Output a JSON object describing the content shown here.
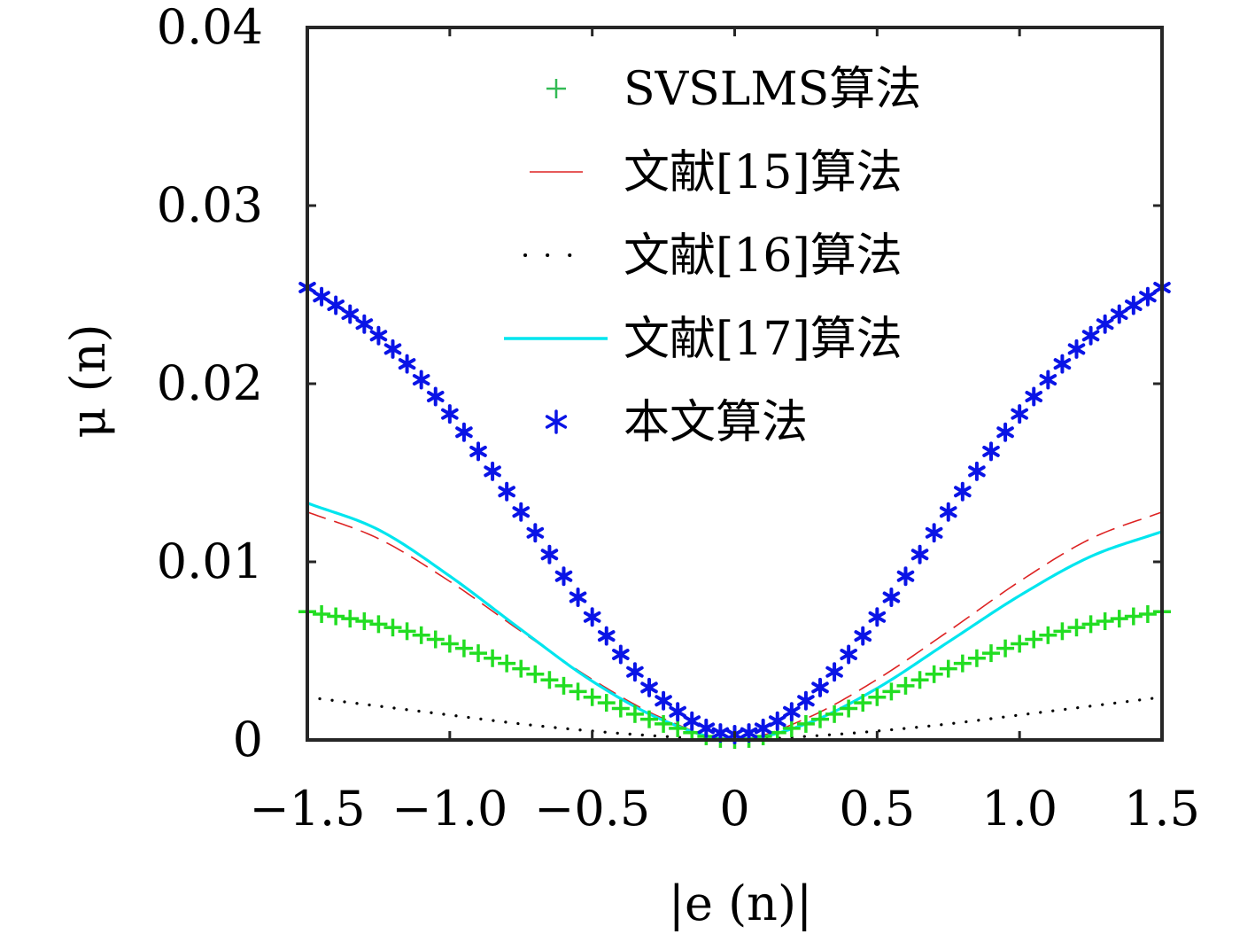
{
  "chart_data": {
    "type": "line",
    "title": "",
    "xlabel": "|e (n)|",
    "ylabel": "μ (n)",
    "xlim": [
      -1.5,
      1.5
    ],
    "ylim": [
      0,
      0.04
    ],
    "xticks": [
      -1.5,
      -1.0,
      -0.5,
      0,
      0.5,
      1.0,
      1.5
    ],
    "xtick_labels": [
      "−1.5",
      "−1.0",
      "−0.5",
      "0",
      "0.5",
      "1.0",
      "1.5"
    ],
    "yticks": [
      0,
      0.01,
      0.02,
      0.03,
      0.04
    ],
    "ytick_labels": [
      "0",
      "0.01",
      "0.02",
      "0.03",
      "0.04"
    ],
    "grid": false,
    "legend_position": "top-center",
    "series": [
      {
        "name": "SVSLMS算法",
        "style": "plus",
        "color": "#22dd22",
        "legend_color": "#33bb55",
        "x": [
          -1.5,
          -1.25,
          -1.0,
          -0.75,
          -0.5,
          -0.25,
          0,
          0.25,
          0.5,
          0.75,
          1.0,
          1.25,
          1.5
        ],
        "y": [
          0.0072,
          0.0065,
          0.0054,
          0.004,
          0.0024,
          0.0009,
          0.0,
          0.0009,
          0.0024,
          0.004,
          0.0054,
          0.0065,
          0.0072
        ]
      },
      {
        "name": "文献[15]算法",
        "style": "dashed",
        "color": "#dd2222",
        "x": [
          -1.5,
          -1.25,
          -1.0,
          -0.75,
          -0.5,
          -0.25,
          0,
          0.25,
          0.5,
          0.75,
          1.0,
          1.25,
          1.5
        ],
        "y": [
          0.0128,
          0.0113,
          0.0089,
          0.0061,
          0.0034,
          0.0012,
          0.0,
          0.0012,
          0.0034,
          0.0061,
          0.0089,
          0.0113,
          0.0128
        ]
      },
      {
        "name": "文献[16]算法",
        "style": "dotted",
        "color": "#000000",
        "x": [
          -1.5,
          -1.25,
          -1.0,
          -0.75,
          -0.5,
          -0.25,
          0,
          0.25,
          0.5,
          0.75,
          1.0,
          1.25,
          1.5
        ],
        "y": [
          0.0024,
          0.0019,
          0.0014,
          0.0009,
          0.0005,
          0.0002,
          0.0,
          0.0002,
          0.0005,
          0.0009,
          0.0014,
          0.0019,
          0.0024
        ]
      },
      {
        "name": "文献[17]算法",
        "style": "solid",
        "color": "#00e5ee",
        "x": [
          -1.5,
          -1.25,
          -1.0,
          -0.75,
          -0.5,
          -0.25,
          0,
          0.25,
          0.5,
          0.75,
          1.0,
          1.25,
          1.5
        ],
        "y": [
          0.0133,
          0.0118,
          0.0092,
          0.0062,
          0.0033,
          0.0011,
          0.0,
          0.0009,
          0.0029,
          0.0055,
          0.0081,
          0.0103,
          0.0117
        ]
      },
      {
        "name": "本文算法",
        "style": "asterisk",
        "color": "#0a14e6",
        "x": [
          -1.5,
          -1.25,
          -1.0,
          -0.75,
          -0.5,
          -0.25,
          0,
          0.25,
          0.5,
          0.75,
          1.0,
          1.25,
          1.5
        ],
        "y": [
          0.0254,
          0.0227,
          0.0183,
          0.0128,
          0.0069,
          0.0022,
          0.0003,
          0.0022,
          0.0069,
          0.0128,
          0.0183,
          0.0227,
          0.0254
        ]
      }
    ]
  }
}
